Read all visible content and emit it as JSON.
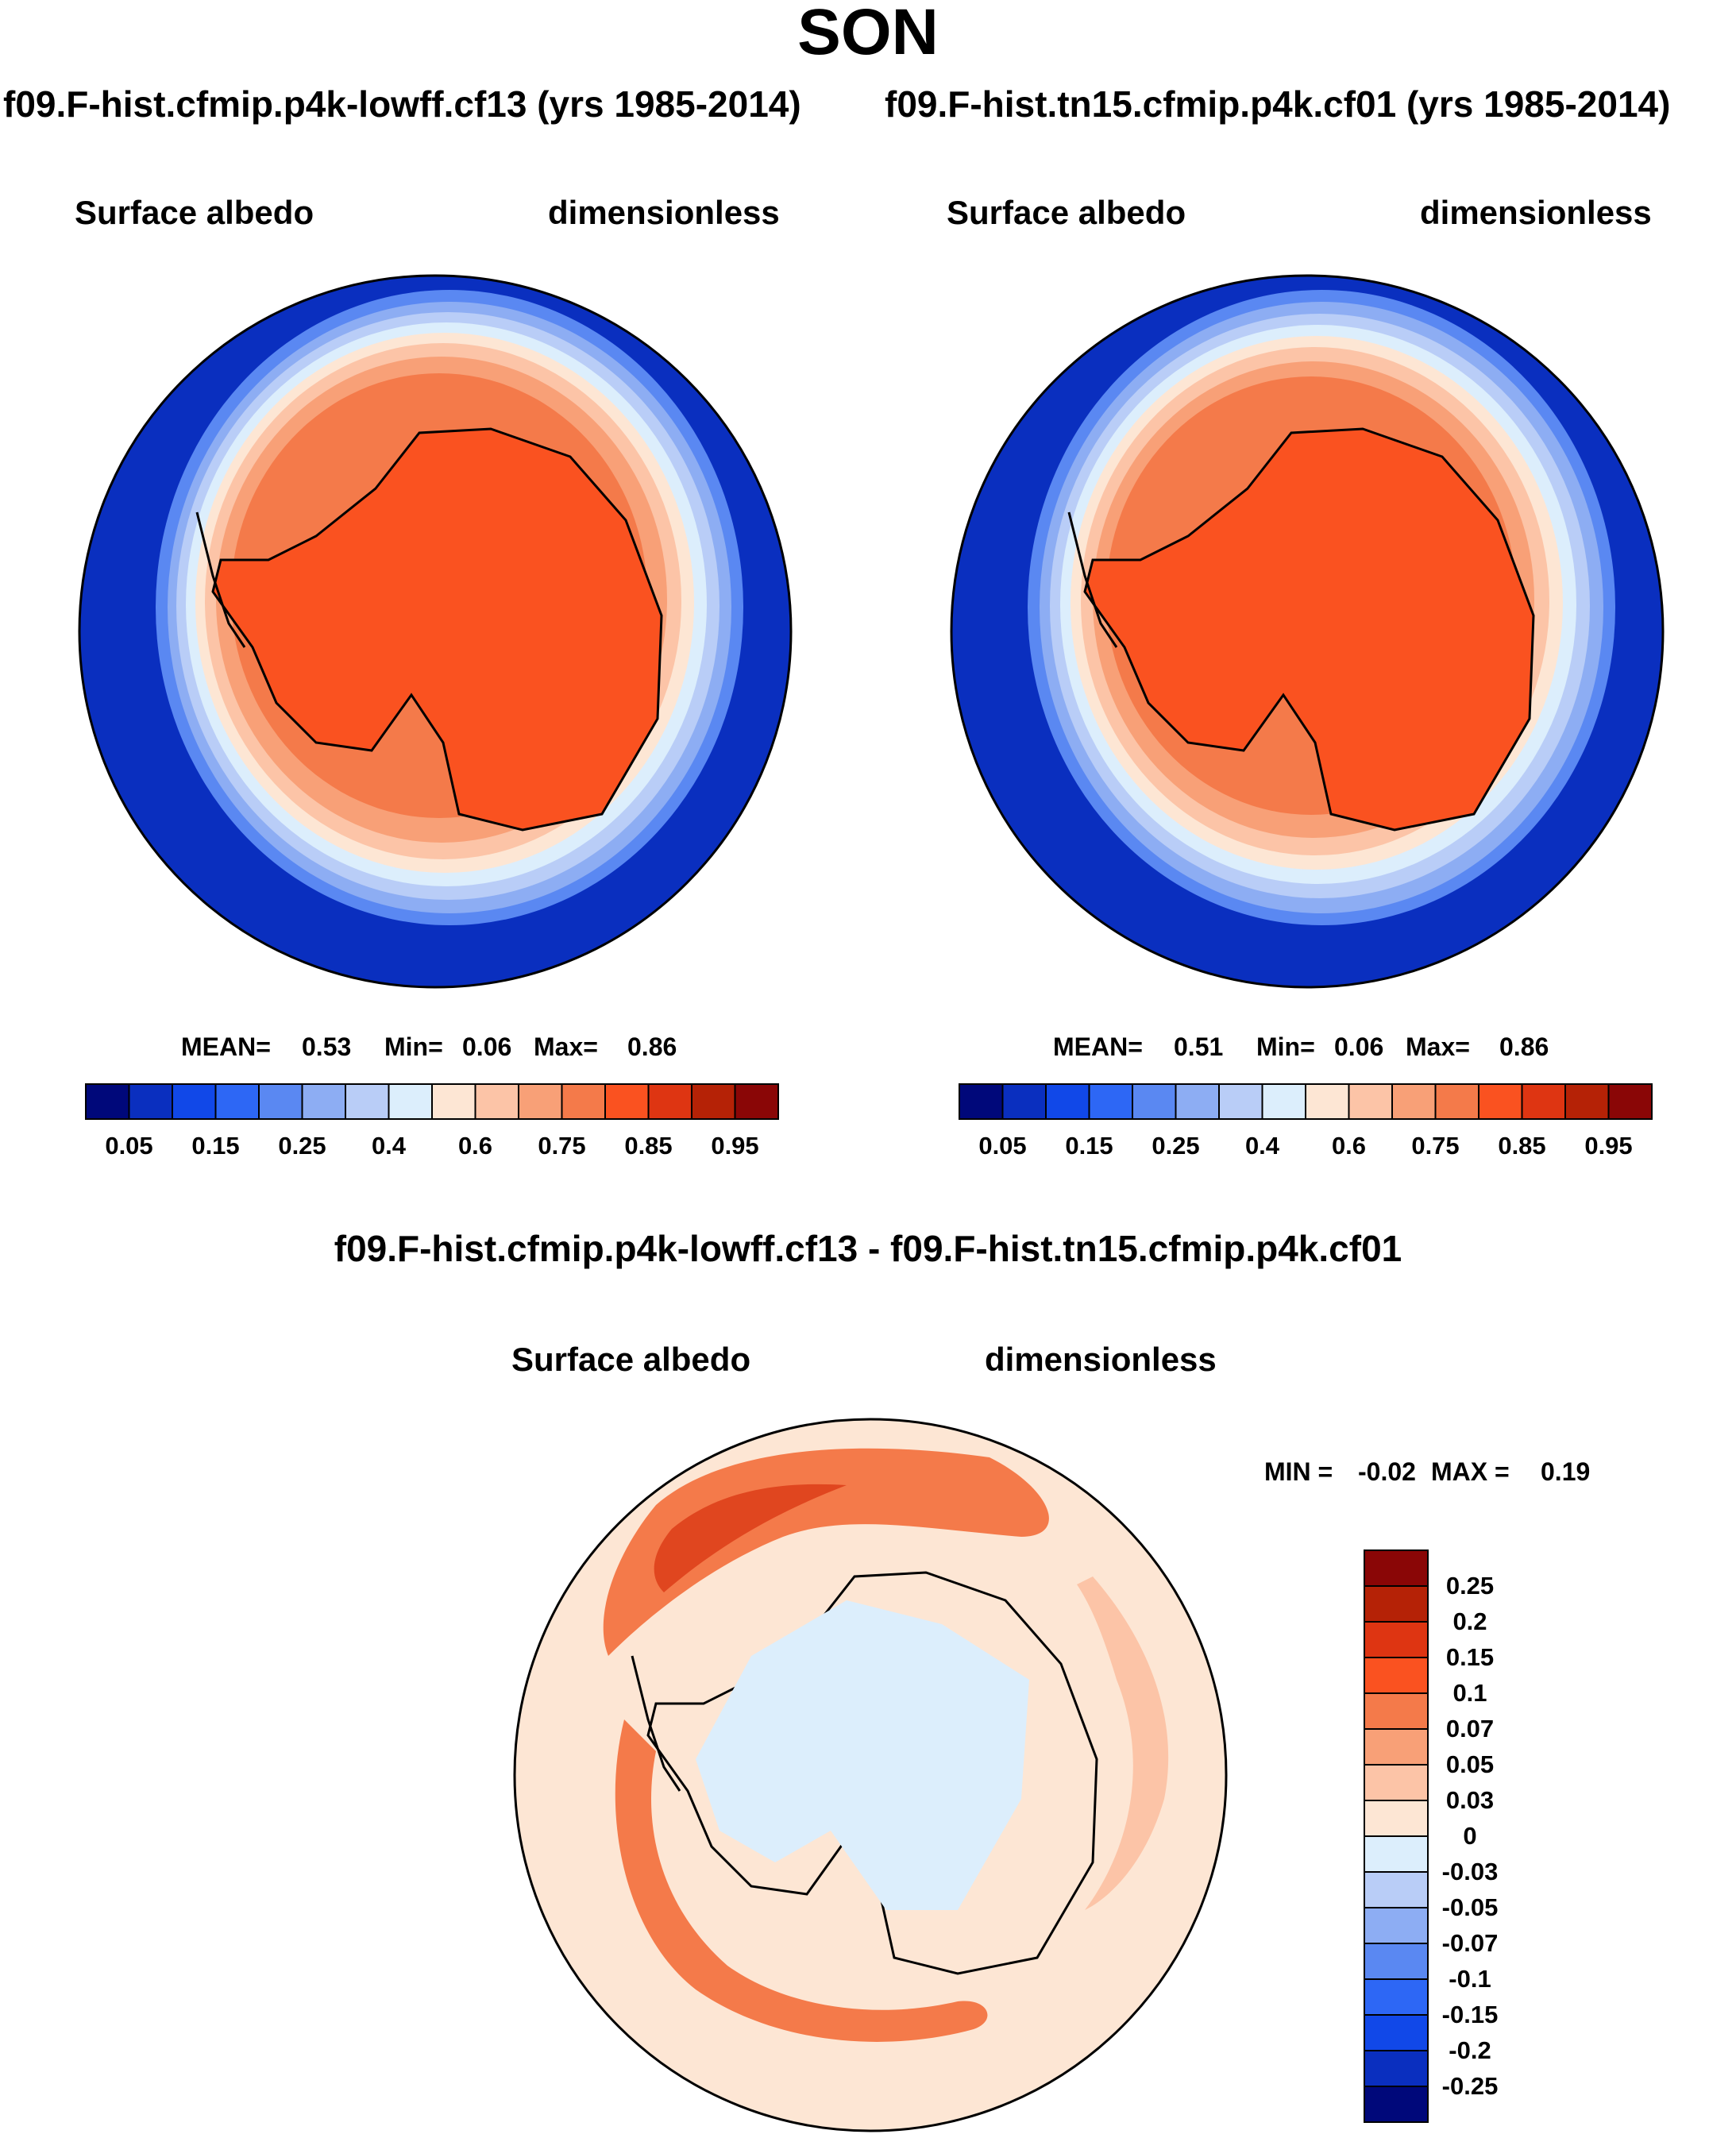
{
  "page": {
    "title": "SON",
    "left_case_title": "f09.F-hist.cfmip.p4k-lowff.cf13 (yrs 1985-2014)",
    "right_case_title": "f09.F-hist.tn15.cfmip.p4k.cf01 (yrs 1985-2014)",
    "diff_title": "f09.F-hist.cfmip.p4k-lowff.cf13 - f09.F-hist.tn15.cfmip.p4k.cf01"
  },
  "colors": {
    "ocean_deep": "#0a2fbf",
    "continent": "#fa5220",
    "diff_background": "#fde6d4",
    "diff_negative": "#dceefc",
    "diff_band": "#f47a4a",
    "diff_band_dark": "#e0461f"
  },
  "chart_data": [
    {
      "type": "heatmap",
      "projection": "south-polar-stereographic",
      "variable": "Surface albedo",
      "units": "dimensionless",
      "stats": {
        "mean_label": "MEAN=",
        "mean": "0.53",
        "min_label": "Min=",
        "min": "0.06",
        "max_label": "Max=",
        "max": "0.86"
      },
      "colorbar": {
        "orientation": "horizontal",
        "colors": [
          "#00087a",
          "#0a2fbf",
          "#1148e8",
          "#2d67f5",
          "#5a88f2",
          "#8dadf3",
          "#b9cdf7",
          "#dceefc",
          "#fde6d4",
          "#fcc4a7",
          "#f8a077",
          "#f47a4a",
          "#fa5220",
          "#de3512",
          "#b52206",
          "#8a0606"
        ],
        "levels": [
          0.05,
          0.1,
          0.15,
          0.2,
          0.25,
          0.3,
          0.4,
          0.5,
          0.6,
          0.65,
          0.75,
          0.8,
          0.85,
          0.9,
          0.95
        ],
        "tick_labels": [
          "0.05",
          "0.15",
          "0.25",
          "0.4",
          "0.6",
          "0.75",
          "0.85",
          "0.95"
        ]
      }
    },
    {
      "type": "heatmap",
      "projection": "south-polar-stereographic",
      "variable": "Surface albedo",
      "units": "dimensionless",
      "stats": {
        "mean_label": "MEAN=",
        "mean": "0.51",
        "min_label": "Min=",
        "min": "0.06",
        "max_label": "Max=",
        "max": "0.86"
      },
      "colorbar": {
        "orientation": "horizontal",
        "colors": [
          "#00087a",
          "#0a2fbf",
          "#1148e8",
          "#2d67f5",
          "#5a88f2",
          "#8dadf3",
          "#b9cdf7",
          "#dceefc",
          "#fde6d4",
          "#fcc4a7",
          "#f8a077",
          "#f47a4a",
          "#fa5220",
          "#de3512",
          "#b52206",
          "#8a0606"
        ],
        "levels": [
          0.05,
          0.1,
          0.15,
          0.2,
          0.25,
          0.3,
          0.4,
          0.5,
          0.6,
          0.65,
          0.75,
          0.8,
          0.85,
          0.9,
          0.95
        ],
        "tick_labels": [
          "0.05",
          "0.15",
          "0.25",
          "0.4",
          "0.6",
          "0.75",
          "0.85",
          "0.95"
        ]
      }
    },
    {
      "type": "heatmap",
      "projection": "south-polar-stereographic",
      "variable": "Surface albedo",
      "units": "dimensionless",
      "stats": {
        "min_label": "MIN =",
        "min": "-0.02",
        "max_label": "MAX =",
        "max": "0.19"
      },
      "colorbar": {
        "orientation": "vertical",
        "colors": [
          "#8a0606",
          "#b52206",
          "#de3512",
          "#fa5220",
          "#f47a4a",
          "#f8a077",
          "#fcc4a7",
          "#fde6d4",
          "#dceefc",
          "#b9cdf7",
          "#8dadf3",
          "#5a88f2",
          "#2d67f5",
          "#1148e8",
          "#0a2fbf",
          "#00087a"
        ],
        "tick_labels": [
          "0.25",
          "0.2",
          "0.15",
          "0.1",
          "0.07",
          "0.05",
          "0.03",
          "0",
          "-0.03",
          "-0.05",
          "-0.07",
          "-0.1",
          "-0.15",
          "-0.2",
          "-0.25"
        ]
      }
    }
  ]
}
